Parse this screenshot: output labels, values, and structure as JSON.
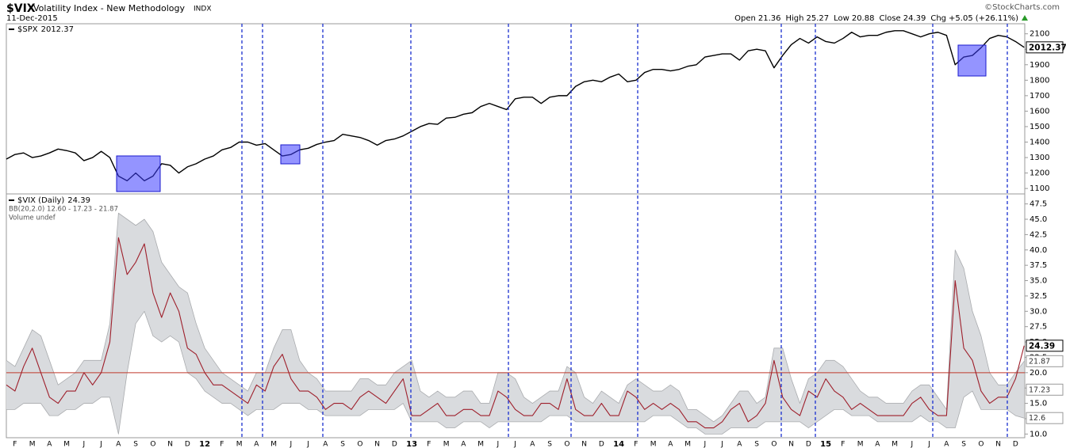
{
  "header": {
    "symbol": "$VIX",
    "name": "Volatility Index - New Methodology",
    "exchange": "INDX",
    "date": "11-Dec-2015",
    "source": "©StockCharts.com",
    "quote": [
      {
        "label": "Open",
        "value": 21.36
      },
      {
        "label": "High",
        "value": 25.27
      },
      {
        "label": "Low",
        "value": 20.88
      },
      {
        "label": "Close",
        "value": 24.39
      },
      {
        "label": "Chg",
        "value": "+5.05"
      },
      {
        "label": null,
        "value": "(+26.11%)"
      }
    ]
  },
  "chart_data": [
    {
      "type": "line",
      "ylim": [
        1070,
        2165
      ],
      "yticks": [
        1100,
        1200,
        1300,
        1400,
        1500,
        1600,
        1700,
        1800,
        1900,
        2000,
        2100
      ],
      "series": [
        {
          "name": "$SPX",
          "color": "#000000",
          "values": [
            1290,
            1320,
            1330,
            1300,
            1310,
            1330,
            1355,
            1345,
            1330,
            1280,
            1300,
            1340,
            1300,
            1180,
            1150,
            1200,
            1150,
            1180,
            1260,
            1250,
            1200,
            1240,
            1260,
            1290,
            1310,
            1350,
            1365,
            1400,
            1400,
            1380,
            1390,
            1350,
            1310,
            1320,
            1350,
            1360,
            1385,
            1400,
            1410,
            1450,
            1440,
            1430,
            1410,
            1380,
            1410,
            1420,
            1440,
            1470,
            1500,
            1520,
            1515,
            1555,
            1560,
            1580,
            1590,
            1630,
            1650,
            1630,
            1610,
            1680,
            1690,
            1690,
            1650,
            1690,
            1700,
            1700,
            1760,
            1790,
            1800,
            1790,
            1820,
            1840,
            1790,
            1800,
            1850,
            1870,
            1870,
            1860,
            1870,
            1890,
            1900,
            1950,
            1960,
            1970,
            1970,
            1930,
            1990,
            2000,
            1990,
            1880,
            1960,
            2030,
            2070,
            2040,
            2080,
            2050,
            2040,
            2070,
            2110,
            2080,
            2090,
            2090,
            2110,
            2120,
            2120,
            2100,
            2080,
            2100,
            2110,
            2090,
            1900,
            1950,
            1960,
            2010,
            2070,
            2090,
            2080,
            2050,
            2012.37
          ]
        }
      ]
    },
    {
      "type": "line",
      "ylim": [
        9.4,
        49
      ],
      "yticks": [
        {
          "value": 10,
          "label": "10.0"
        },
        12.5,
        {
          "value": 15,
          "label": "15.0"
        },
        17.5,
        {
          "value": 20,
          "label": "20.0"
        },
        22.5,
        {
          "value": 25,
          "label": "25.0"
        },
        27.5,
        {
          "value": 30,
          "label": "30.0"
        },
        32.5,
        {
          "value": 35,
          "label": "35.0"
        },
        37.5,
        {
          "value": 40,
          "label": "40.0"
        },
        42.5,
        {
          "value": 45,
          "label": "45.0"
        },
        47.5
      ],
      "categories": [
        null,
        "F",
        null,
        "M",
        null,
        "A",
        null,
        "M",
        null,
        "J",
        null,
        "J",
        null,
        "A",
        null,
        "S",
        null,
        "O",
        null,
        "N",
        null,
        "D",
        null,
        "12",
        null,
        "F",
        null,
        "M",
        null,
        "A",
        null,
        "M",
        null,
        "J",
        null,
        "J",
        null,
        "A",
        null,
        "S",
        null,
        "O",
        null,
        "N",
        null,
        "D",
        null,
        "13",
        null,
        "F",
        null,
        "M",
        null,
        "A",
        null,
        "M",
        null,
        "J",
        null,
        "J",
        null,
        "A",
        null,
        "S",
        null,
        "O",
        null,
        "N",
        null,
        "D",
        null,
        "14",
        null,
        "F",
        null,
        "M",
        null,
        "A",
        null,
        "M",
        null,
        "J",
        null,
        "J",
        null,
        "A",
        null,
        "S",
        null,
        "O",
        null,
        "N",
        null,
        "D",
        null,
        "15",
        null,
        "F",
        null,
        "M",
        null,
        "A",
        null,
        "M",
        null,
        "J",
        null,
        "J",
        null,
        "A",
        null,
        "S",
        null,
        "O",
        null,
        "N",
        null,
        "D",
        null
      ],
      "series": [
        {
          "name": "$VIX (Daily)",
          "color": "#9e1f2b",
          "values": [
            18,
            17,
            21,
            24,
            20,
            16,
            15,
            17,
            17,
            20,
            18,
            20,
            25,
            42,
            36,
            38,
            41,
            33,
            29,
            33,
            30,
            24,
            23,
            20,
            18,
            18,
            17,
            16,
            15,
            18,
            17,
            21,
            23,
            19,
            17,
            17,
            16,
            14,
            15,
            15,
            14,
            16,
            17,
            16,
            15,
            17,
            19,
            13,
            13,
            14,
            15,
            13,
            13,
            14,
            14,
            13,
            13,
            17,
            16,
            14,
            13,
            13,
            15,
            15,
            14,
            19,
            14,
            13,
            13,
            15,
            13,
            13,
            17,
            16,
            14,
            15,
            14,
            15,
            14,
            12,
            12,
            11,
            11,
            12,
            14,
            15,
            12,
            13,
            15,
            22,
            16,
            14,
            13,
            17,
            16,
            19,
            17,
            16,
            14,
            15,
            14,
            13,
            13,
            13,
            13,
            15,
            16,
            14,
            13,
            13,
            35,
            24,
            22,
            17,
            15,
            16,
            16,
            19,
            24.39
          ]
        }
      ],
      "band": {
        "legend": "BB(20,2.0) 12.60 - 17.23 - 21.87",
        "middle_last": 17.23,
        "fill": "#d9dbde",
        "color": "#a9abae",
        "upper": [
          22,
          21,
          24,
          27,
          26,
          22,
          18,
          19,
          20,
          22,
          22,
          22,
          28,
          46,
          45,
          44,
          45,
          43,
          38,
          36,
          34,
          33,
          28,
          24,
          22,
          20,
          19,
          18,
          17,
          20,
          20,
          24,
          27,
          27,
          22,
          20,
          19,
          17,
          17,
          17,
          17,
          19,
          19,
          18,
          18,
          20,
          21,
          22,
          17,
          16,
          17,
          16,
          16,
          17,
          17,
          15,
          15,
          20,
          20,
          19,
          16,
          15,
          16,
          17,
          17,
          21,
          20,
          16,
          15,
          17,
          16,
          15,
          18,
          19,
          18,
          17,
          17,
          18,
          17,
          14,
          14,
          13,
          12,
          13,
          15,
          17,
          17,
          15,
          16,
          24,
          24,
          19,
          15,
          19,
          20,
          22,
          22,
          21,
          19,
          17,
          16,
          16,
          15,
          15,
          15,
          17,
          18,
          18,
          16,
          14,
          40,
          37,
          30,
          26,
          20,
          18,
          18,
          20,
          21.87
        ],
        "lower": [
          14,
          14,
          15,
          15,
          15,
          13,
          13,
          14,
          14,
          15,
          15,
          16,
          16,
          10,
          20,
          28,
          30,
          26,
          25,
          26,
          25,
          20,
          19,
          17,
          16,
          15,
          15,
          14,
          13,
          14,
          14,
          14,
          15,
          15,
          15,
          14,
          14,
          13,
          13,
          13,
          13,
          13,
          14,
          14,
          14,
          14,
          15,
          12,
          12,
          12,
          12,
          11,
          11,
          12,
          12,
          12,
          11,
          12,
          12,
          12,
          12,
          12,
          12,
          13,
          13,
          13,
          12,
          12,
          12,
          12,
          12,
          12,
          12,
          12,
          12,
          13,
          13,
          13,
          12,
          11,
          11,
          10,
          10,
          10,
          11,
          11,
          11,
          11,
          12,
          12,
          12,
          12,
          12,
          11,
          12,
          13,
          14,
          14,
          13,
          13,
          13,
          12,
          12,
          12,
          12,
          12,
          13,
          12,
          12,
          11,
          11,
          16,
          17,
          14,
          14,
          14,
          14,
          13,
          12.6
        ]
      },
      "hline": {
        "value": 20,
        "color": "#c0392b"
      },
      "volume_label": "Volume undef"
    }
  ]
}
